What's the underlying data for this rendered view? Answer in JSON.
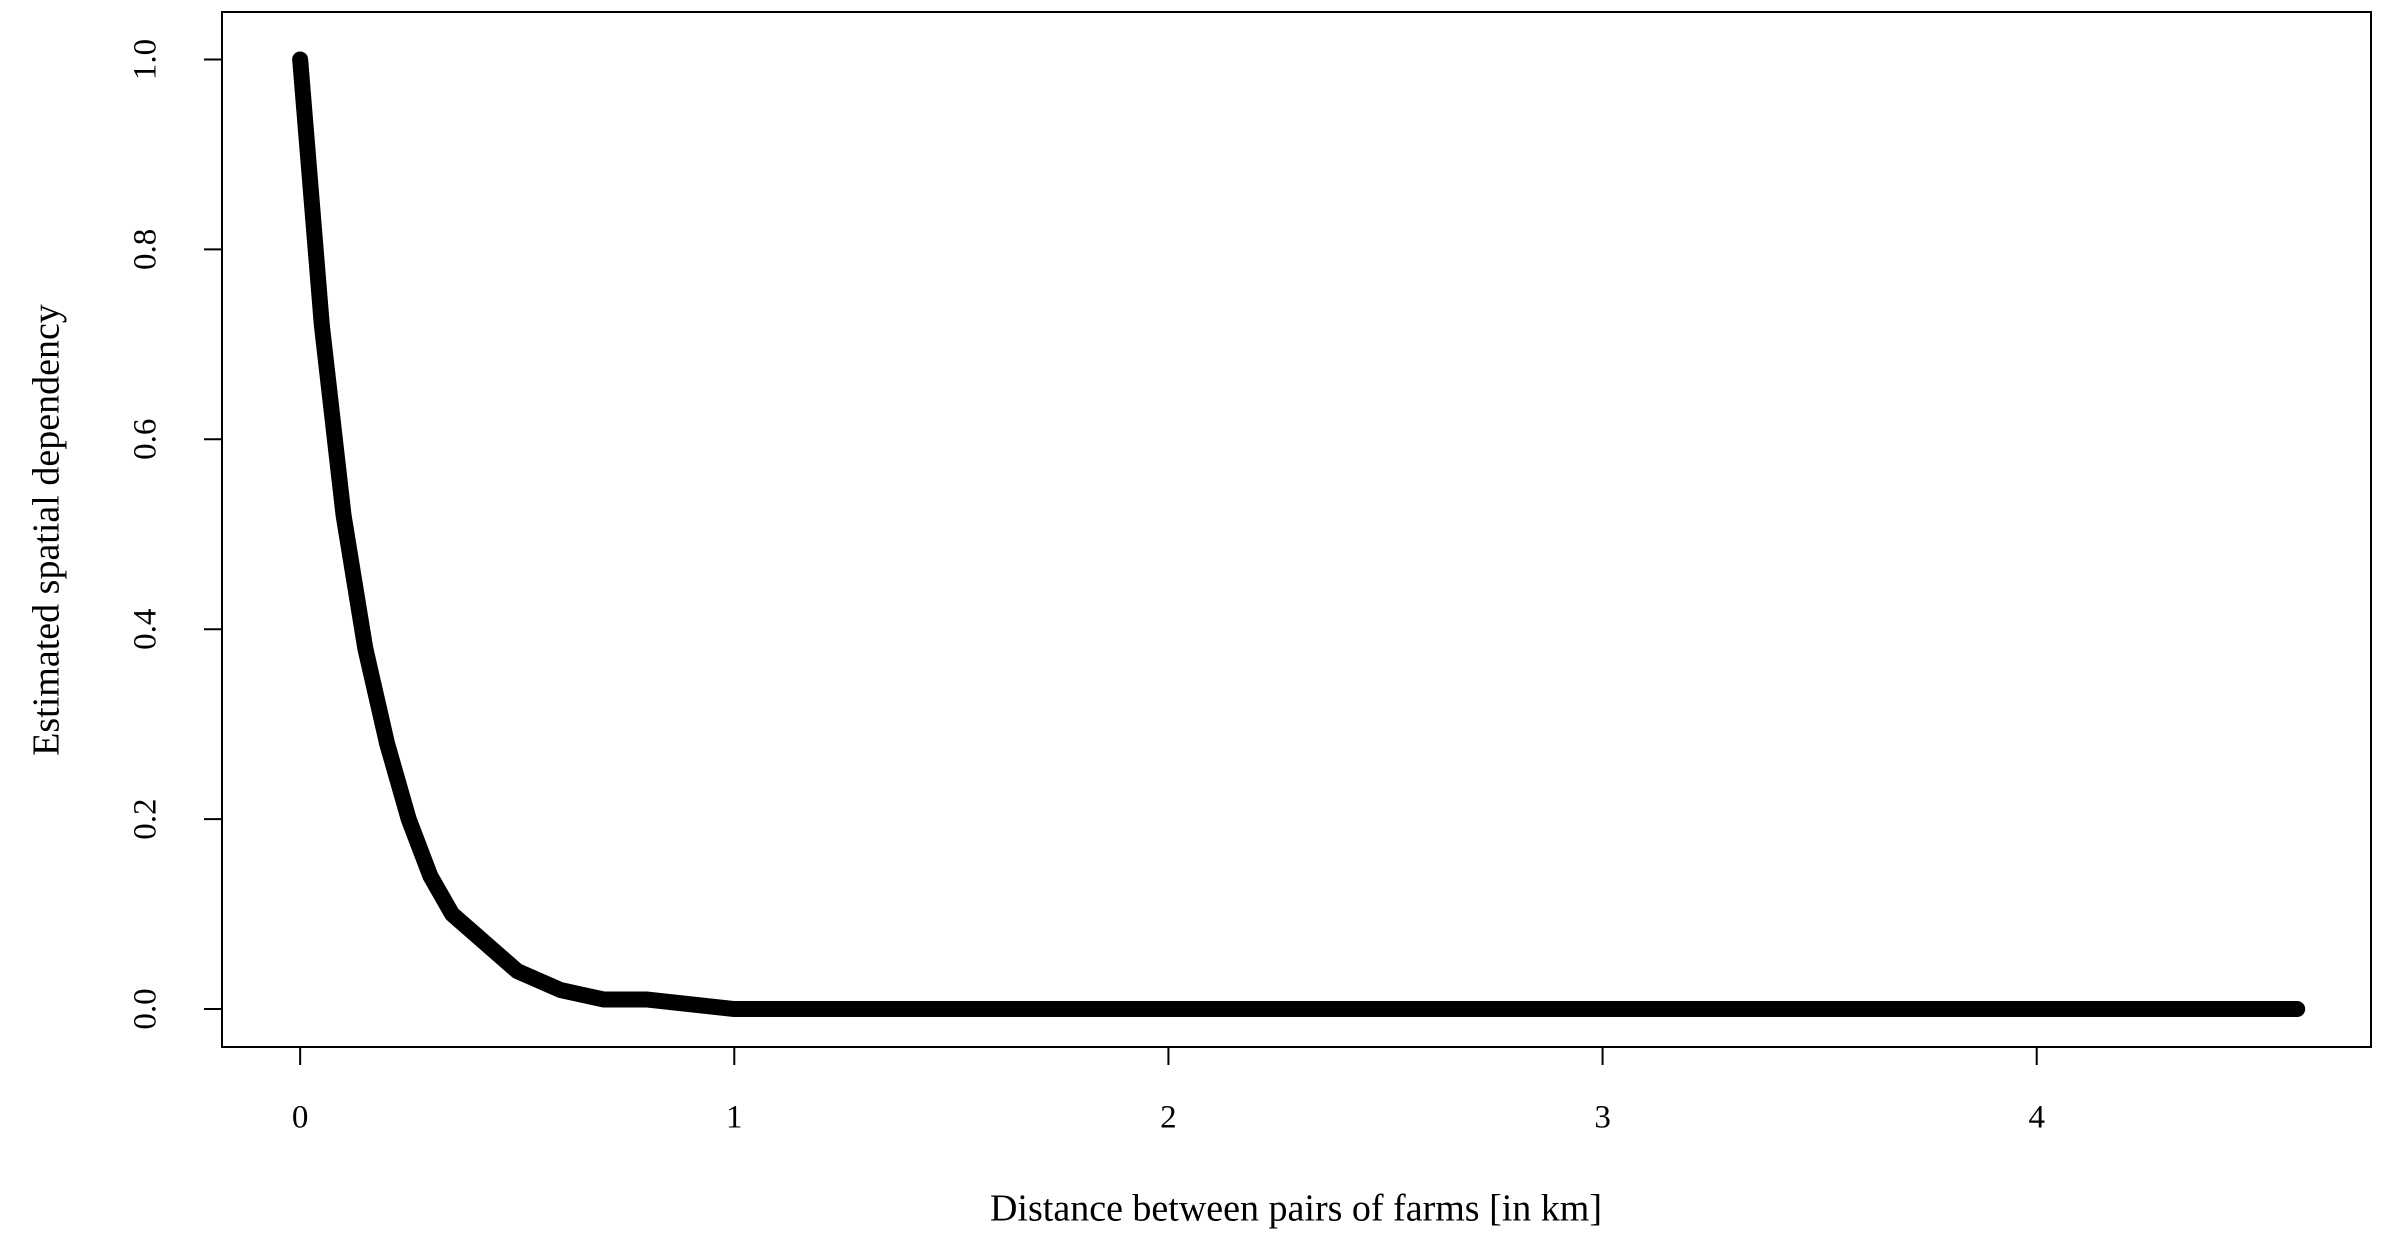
{
  "chart_data": {
    "type": "line",
    "x_label": "Distance between pairs of farms [in km]",
    "y_label": "Estimated spatial dependency",
    "x": [
      0,
      0.05,
      0.1,
      0.15,
      0.2,
      0.25,
      0.3,
      0.35,
      0.4,
      0.5,
      0.6,
      0.7,
      0.8,
      1.0,
      1.5,
      2.0,
      2.5,
      3.0,
      3.5,
      4.0,
      4.5,
      4.6
    ],
    "series": [
      {
        "color": "#000000",
        "values": [
          1,
          0.72,
          0.52,
          0.38,
          0.28,
          0.2,
          0.14,
          0.1,
          0.08,
          0.04,
          0.02,
          0.01,
          0.01,
          0,
          0,
          0,
          0,
          0,
          0,
          0,
          0,
          0
        ]
      }
    ],
    "xlim": [
      -0.18,
      4.77
    ],
    "ylim": [
      -0.04,
      1.05
    ],
    "xticks": [
      0,
      1,
      2,
      3,
      4
    ],
    "yticks": [
      {
        "value": 0,
        "label": "0.0"
      },
      {
        "value": 0.2,
        "label": "0.2"
      },
      {
        "value": 0.4,
        "label": "0.4"
      },
      {
        "value": 0.6,
        "label": "0.6"
      },
      {
        "value": 0.8,
        "label": "0.8"
      },
      {
        "value": 1,
        "label": "1.0"
      }
    ]
  }
}
